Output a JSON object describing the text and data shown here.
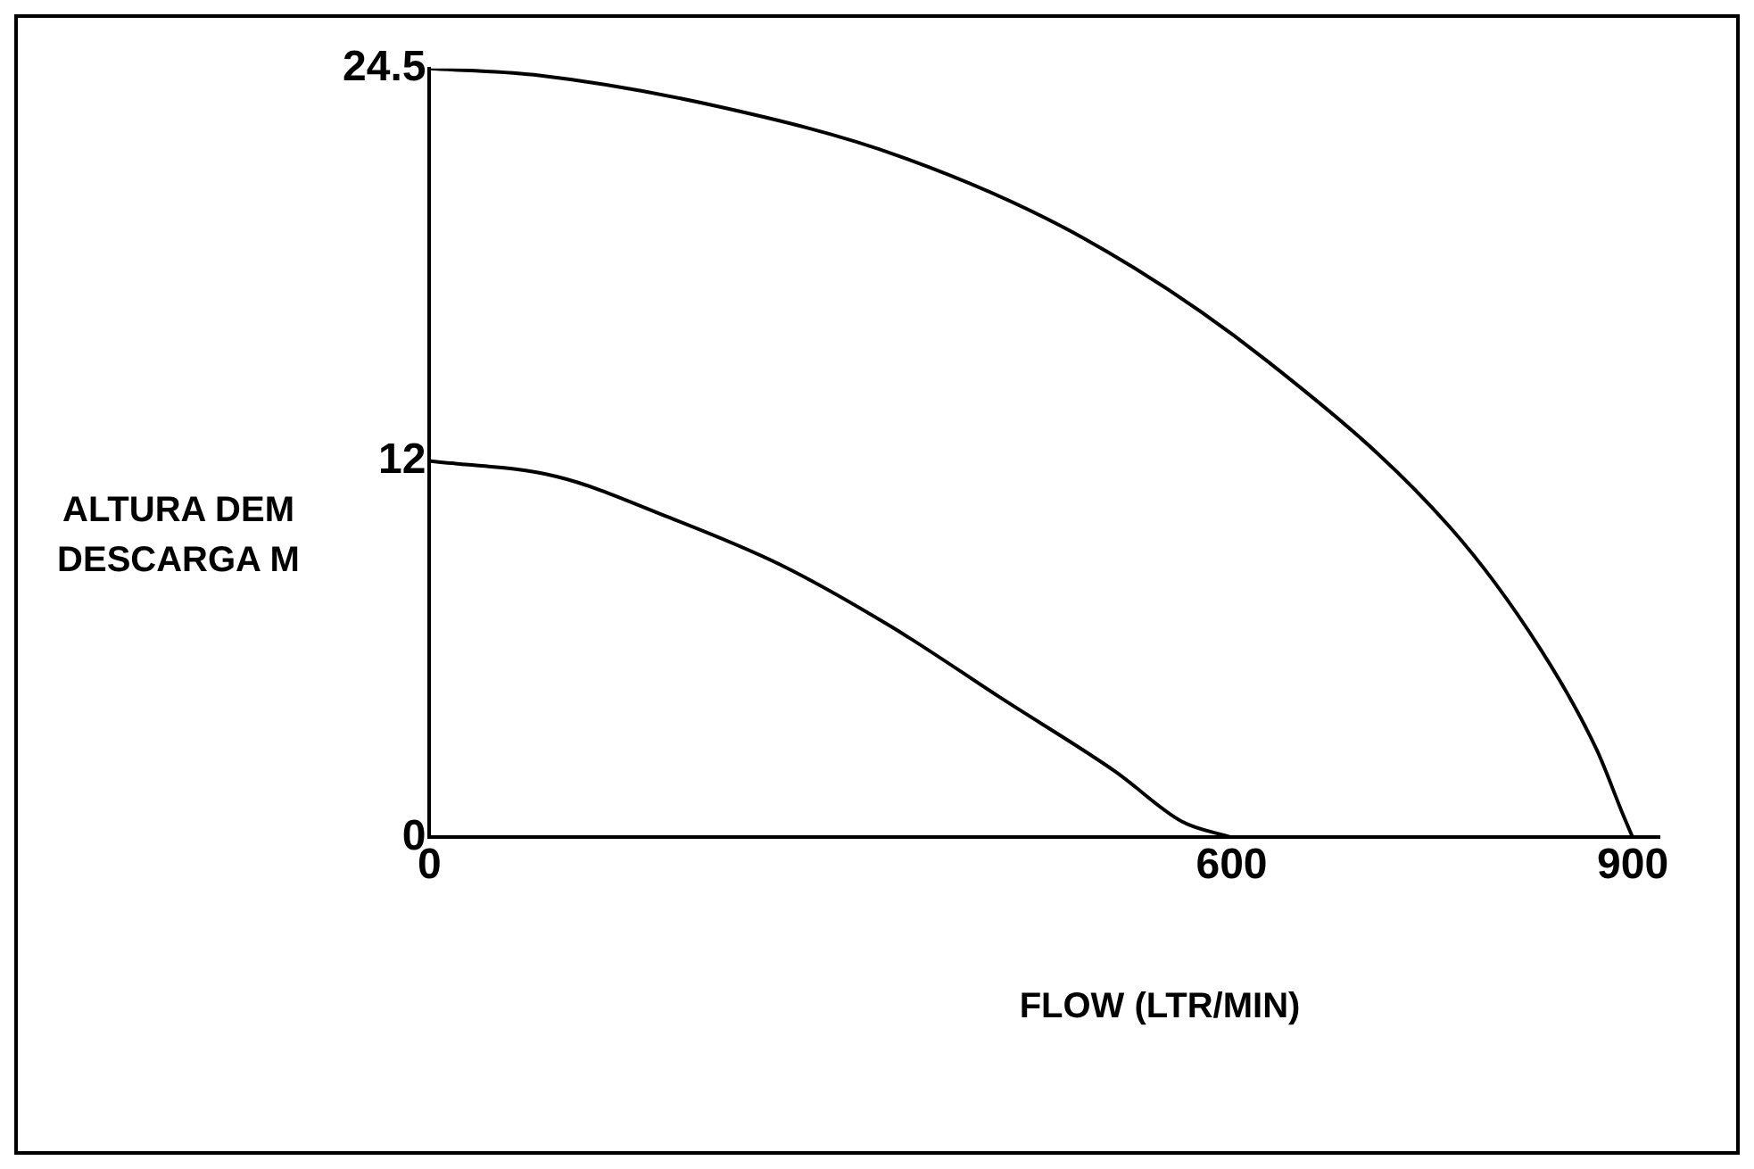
{
  "chart_data": {
    "type": "line",
    "xlabel": "FLOW (LTR/MIN)",
    "ylabel": "ALTURA DEM DESCARGA M",
    "xlim": [
      0,
      920
    ],
    "ylim": [
      0,
      24.5
    ],
    "xticks": [
      0,
      600,
      900
    ],
    "yticks": [
      0,
      12,
      24.5
    ],
    "grid": false,
    "legend": false,
    "marker": "none",
    "line_style": "solid",
    "series": [
      {
        "color": "#000000",
        "x": [
          0,
          78,
          215,
          352,
          489,
          626,
          763,
          831,
          873,
          893,
          900
        ],
        "values": [
          24.5,
          24.3,
          23.3,
          21.7,
          19.1,
          15.2,
          9.9,
          6.0,
          2.8,
          0.7,
          0
        ]
      },
      {
        "color": "#000000",
        "x": [
          0,
          95,
          179,
          262,
          346,
          429,
          513,
          563,
          600
        ],
        "values": [
          12,
          11.5,
          10.2,
          8.7,
          6.7,
          4.4,
          2.1,
          0.5,
          0
        ]
      }
    ]
  }
}
